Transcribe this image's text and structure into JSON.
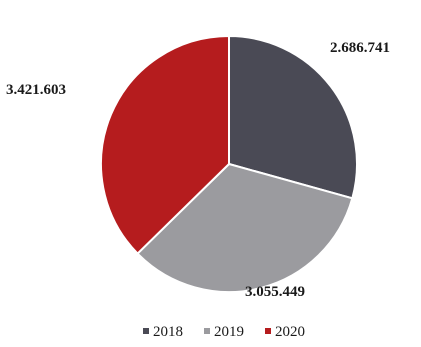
{
  "chart_data": {
    "type": "pie",
    "categories": [
      "2018",
      "2019",
      "2020"
    ],
    "values": [
      2686741,
      3055449,
      3421603
    ],
    "data_labels": [
      "2.686.741",
      "3.055.449",
      "3.421.603"
    ],
    "colors": [
      "#4a4a55",
      "#9b9b9f",
      "#b51c1e"
    ],
    "start_angle_deg": 0,
    "direction": "clockwise",
    "legend": {
      "position": "bottom",
      "entries": [
        "2018",
        "2019",
        "2020"
      ]
    }
  }
}
